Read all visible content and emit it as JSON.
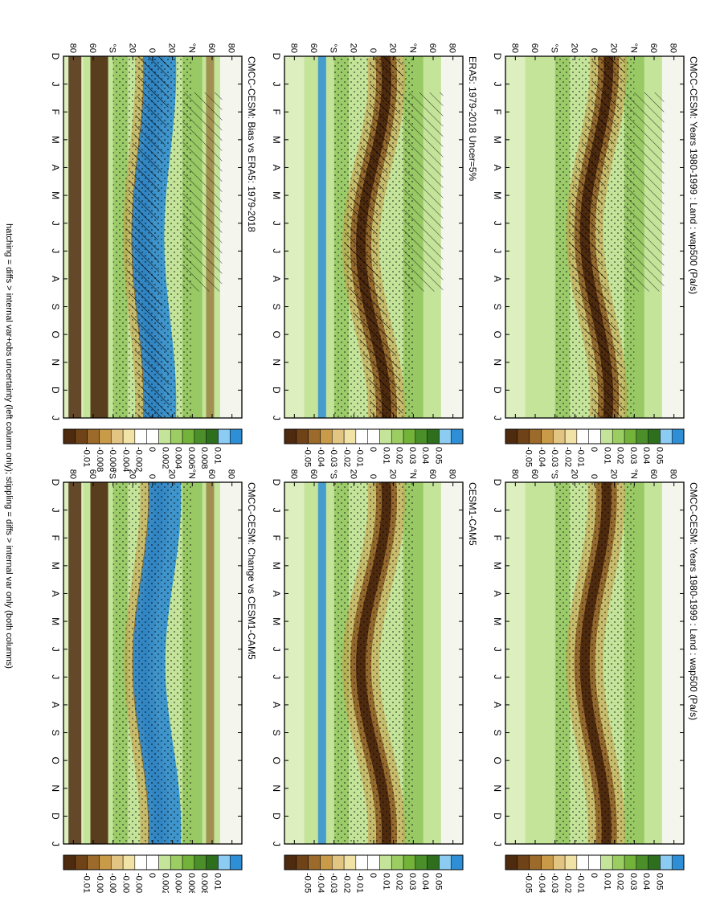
{
  "footer": "hatching = diffs > internal var+obs uncertainty (left column only); stippling = diffs > internal var only (both columns)",
  "axes": {
    "months": [
      "D",
      "J",
      "F",
      "M",
      "A",
      "M",
      "J",
      "J",
      "A",
      "S",
      "O",
      "N",
      "D",
      "J"
    ],
    "lat_labels": [
      "80",
      "60",
      "°N",
      "20",
      "0",
      "20",
      "°S",
      "60",
      "80"
    ]
  },
  "colors": {
    "blue_dark": "#2f8fd6",
    "blue_light": "#8ccbf2",
    "green_dark": "#2d6f1c",
    "green_mid": "#74b33a",
    "green_light": "#c4e49a",
    "white": "#ffffff",
    "tan_light": "#f1e2a6",
    "tan_mid": "#c99a47",
    "brown_dark": "#4e2b0f"
  },
  "chart_data": [
    {
      "type": "heatmap",
      "title": "CMCC-CESM: Years 1980-1999 : Land : wap500 (Pa/s)",
      "x": [
        "D",
        "J",
        "F",
        "M",
        "A",
        "M",
        "J",
        "J",
        "A",
        "S",
        "O",
        "N",
        "D",
        "J"
      ],
      "y": [
        80,
        60,
        40,
        20,
        0,
        -20,
        -40,
        -60,
        -80
      ],
      "colorbar": [
        "0.05",
        "0.04",
        "0.03",
        "0.02",
        "0.01",
        "0",
        "-0.01",
        "-0.02",
        "-0.03",
        "-0.04",
        "-0.05"
      ],
      "hatching": true,
      "stippling": true,
      "band": {
        "amp": 12,
        "center": 2,
        "phase": 6.3
      }
    },
    {
      "type": "heatmap",
      "title": "CMCC-CESM: Years 1980-1999 : Land : wap500 (Pa/s)",
      "x": [
        "D",
        "J",
        "F",
        "M",
        "A",
        "M",
        "J",
        "J",
        "A",
        "S",
        "O",
        "N",
        "D",
        "J"
      ],
      "y": [
        80,
        60,
        40,
        20,
        0,
        -20,
        -40,
        -60,
        -80
      ],
      "colorbar": [
        "0.05",
        "0.04",
        "0.03",
        "0.02",
        "0.01",
        "0",
        "-0.01",
        "-0.02",
        "-0.03",
        "-0.04",
        "-0.05"
      ],
      "hatching": false,
      "stippling": true,
      "band": {
        "amp": 11,
        "center": 1,
        "phase": 6.5
      }
    },
    {
      "type": "heatmap",
      "title": "ERA5: 1979-2018 Uncer=5%",
      "x": [
        "D",
        "J",
        "F",
        "M",
        "A",
        "M",
        "J",
        "J",
        "A",
        "S",
        "O",
        "N",
        "D",
        "J"
      ],
      "y": [
        80,
        60,
        40,
        20,
        0,
        -20,
        -40,
        -60,
        -80
      ],
      "colorbar": [
        "0.05",
        "0.04",
        "0.03",
        "0.02",
        "0.01",
        "0",
        "-0.01",
        "-0.02",
        "-0.03",
        "-0.04",
        "-0.05"
      ],
      "hatching": true,
      "stippling": true,
      "band": {
        "amp": 13,
        "center": 0,
        "phase": 6.8
      }
    },
    {
      "type": "heatmap",
      "title": "CESM1-CAM5",
      "x": [
        "D",
        "J",
        "F",
        "M",
        "A",
        "M",
        "J",
        "J",
        "A",
        "S",
        "O",
        "N",
        "D",
        "J"
      ],
      "y": [
        80,
        60,
        40,
        20,
        0,
        -20,
        -40,
        -60,
        -80
      ],
      "colorbar": [
        "0.05",
        "0.04",
        "0.03",
        "0.02",
        "0.01",
        "0",
        "-0.01",
        "-0.02",
        "-0.03",
        "-0.04",
        "-0.05"
      ],
      "hatching": false,
      "stippling": true,
      "band": {
        "amp": 13,
        "center": 0,
        "phase": 6.6
      }
    },
    {
      "type": "heatmap",
      "title": "CMCC-CESM: Bias vs ERA5: 1979-2018",
      "x": [
        "D",
        "J",
        "F",
        "M",
        "A",
        "M",
        "J",
        "J",
        "A",
        "S",
        "O",
        "N",
        "D",
        "J"
      ],
      "y": [
        80,
        60,
        40,
        20,
        0,
        -20,
        -40,
        -60,
        -80
      ],
      "colorbar": [
        "0.01",
        "0.008",
        "0.006",
        "0.004",
        "0.002",
        "0",
        "-0.002",
        "-0.004",
        "-0.006",
        "-0.008",
        "-0.01"
      ],
      "hatching": true,
      "stippling": true,
      "band": {
        "amp": 6,
        "center": -5,
        "phase": 6.5
      }
    },
    {
      "type": "heatmap",
      "title": "CMCC-CESM: Change vs CESM1-CAM5",
      "x": [
        "D",
        "J",
        "F",
        "M",
        "A",
        "M",
        "J",
        "J",
        "A",
        "S",
        "O",
        "N",
        "D",
        "J"
      ],
      "y": [
        80,
        60,
        40,
        20,
        0,
        -20,
        -40,
        -60,
        -80
      ],
      "colorbar": [
        "0.01",
        "0.008",
        "0.006",
        "0.004",
        "0.002",
        "0",
        "-0.002",
        "-0.004",
        "-0.006",
        "-0.008",
        "-0.01"
      ],
      "hatching": false,
      "stippling": true,
      "band": {
        "amp": 8,
        "center": -2,
        "phase": 6.5
      }
    }
  ]
}
